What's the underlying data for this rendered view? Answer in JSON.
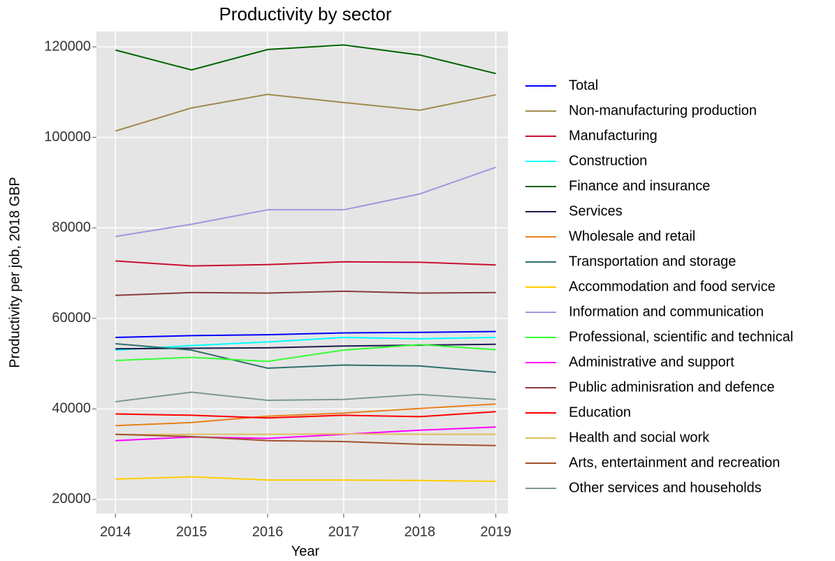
{
  "chart_data": {
    "type": "line",
    "title": "Productivity by sector",
    "x_label": "Year",
    "y_label": "Productivity per job, 2018 GBP",
    "x": [
      2014,
      2015,
      2016,
      2017,
      2018,
      2019
    ],
    "xlim": [
      2013.75,
      2019.16
    ],
    "xticks": [
      2014,
      2015,
      2016,
      2017,
      2018,
      2019
    ],
    "ylim": [
      16900,
      123400
    ],
    "yticks": [
      20000,
      40000,
      60000,
      80000,
      100000,
      120000
    ],
    "grid": true,
    "legend": "right",
    "series": [
      {
        "name": "Total",
        "color": "#0000ff",
        "values": [
          55800,
          56200,
          56400,
          56800,
          56900,
          57100
        ]
      },
      {
        "name": "Non-manufacturing production",
        "color": "#a08a4e",
        "values": [
          101400,
          106500,
          109500,
          107700,
          106000,
          109400
        ]
      },
      {
        "name": "Manufacturing",
        "color": "#c8102e",
        "values": [
          72700,
          71600,
          71900,
          72500,
          72400,
          71800
        ]
      },
      {
        "name": "Construction",
        "color": "#00ffff",
        "values": [
          53000,
          54000,
          54800,
          55800,
          55500,
          55800
        ]
      },
      {
        "name": "Finance and insurance",
        "color": "#006400",
        "values": [
          119300,
          114900,
          119400,
          120400,
          118200,
          114100
        ]
      },
      {
        "name": "Services",
        "color": "#1a1a4e",
        "values": [
          53300,
          53400,
          53500,
          53900,
          54100,
          54300
        ]
      },
      {
        "name": "Wholesale and retail",
        "color": "#e8801a",
        "values": [
          36300,
          37000,
          38400,
          39100,
          40100,
          41100
        ]
      },
      {
        "name": "Transportation and storage",
        "color": "#2f6f6a",
        "values": [
          54400,
          53000,
          49000,
          49700,
          49500,
          48100
        ]
      },
      {
        "name": "Accommodation and food service",
        "color": "#ffcc00",
        "values": [
          24500,
          25000,
          24300,
          24300,
          24200,
          24000
        ]
      },
      {
        "name": "Information and communication",
        "color": "#9f97e0",
        "values": [
          78100,
          80800,
          84000,
          84000,
          87500,
          93400
        ]
      },
      {
        "name": "Professional, scientific and technical",
        "color": "#33ff33",
        "values": [
          50700,
          51400,
          50500,
          53000,
          54200,
          53100
        ]
      },
      {
        "name": "Administrative and support",
        "color": "#ff00ff",
        "values": [
          33000,
          33800,
          33500,
          34400,
          35300,
          36000
        ]
      },
      {
        "name": "Public adminisration and defence",
        "color": "#8b3a3a",
        "values": [
          65100,
          65700,
          65600,
          66000,
          65600,
          65700
        ]
      },
      {
        "name": "Education",
        "color": "#ff0000",
        "values": [
          38900,
          38600,
          38000,
          38600,
          38300,
          39400
        ]
      },
      {
        "name": "Health and social work",
        "color": "#ddc060",
        "values": [
          34300,
          34400,
          34400,
          34500,
          34400,
          34400
        ]
      },
      {
        "name": "Arts, entertainment and recreation",
        "color": "#a0522d",
        "values": [
          34400,
          33900,
          33000,
          32800,
          32200,
          31900
        ]
      },
      {
        "name": "Other services and households",
        "color": "#7a9a8a",
        "values": [
          41600,
          43700,
          41900,
          42100,
          43200,
          42100
        ]
      }
    ]
  }
}
